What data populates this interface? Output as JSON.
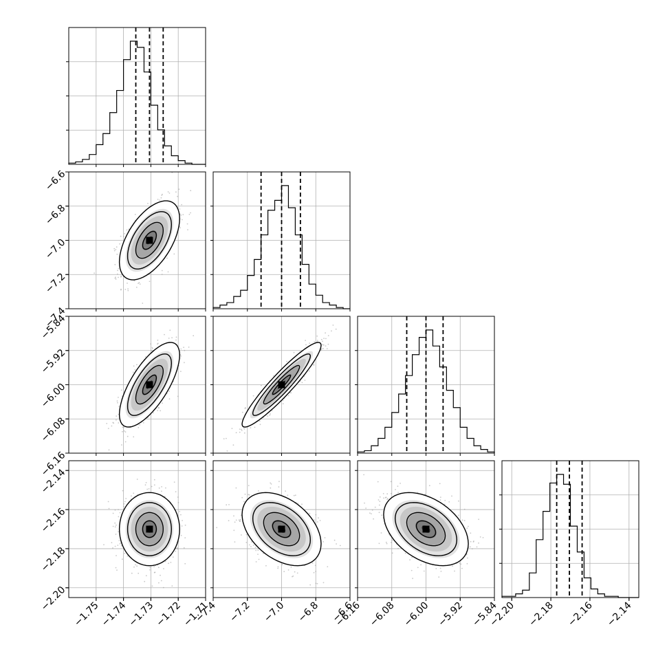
{
  "chart_data": {
    "type": "corner",
    "title": "",
    "parameters": [
      {
        "range": [
          -1.76,
          -1.71
        ],
        "quantiles": [
          -1.7355,
          -1.7305,
          -1.7255
        ],
        "ticks": [
          -1.75,
          -1.74,
          -1.73,
          -1.72,
          -1.71
        ],
        "tick_labels": [
          "−1.75",
          "−1.74",
          "−1.73",
          "−1.72",
          "−1.71"
        ]
      },
      {
        "range": [
          -7.4,
          -6.6
        ],
        "quantiles": [
          -7.12,
          -7.0,
          -6.89
        ],
        "ticks": [
          -7.4,
          -7.2,
          -7.0,
          -6.8,
          -6.6
        ],
        "tick_labels": [
          "−7.4",
          "−7.2",
          "−7.0",
          "−6.8",
          "−6.6"
        ]
      },
      {
        "range": [
          -6.16,
          -5.84
        ],
        "quantiles": [
          -6.045,
          -6.0,
          -5.96
        ],
        "ticks": [
          -6.16,
          -6.08,
          -6.0,
          -5.92,
          -5.84
        ],
        "tick_labels": [
          "−6.16",
          "−6.08",
          "−6.00",
          "−5.92",
          "−5.84"
        ]
      },
      {
        "range": [
          -2.205,
          -2.135
        ],
        "quantiles": [
          -2.177,
          -2.1705,
          -2.164
        ],
        "ticks": [
          -2.2,
          -2.18,
          -2.16,
          -2.14
        ],
        "tick_labels": [
          "−2.20",
          "−2.18",
          "−2.16",
          "−2.14"
        ]
      }
    ],
    "histograms": [
      {
        "param": 0,
        "counts": [
          1,
          2,
          4,
          8,
          16,
          25,
          42,
          60,
          85,
          100,
          95,
          75,
          48,
          28,
          15,
          7,
          3,
          1,
          0,
          0
        ]
      },
      {
        "param": 1,
        "counts": [
          1,
          3,
          5,
          10,
          15,
          27,
          40,
          60,
          80,
          88,
          100,
          82,
          60,
          36,
          20,
          11,
          5,
          3,
          1,
          0
        ]
      },
      {
        "param": 2,
        "counts": [
          1,
          2,
          6,
          12,
          21,
          33,
          48,
          63,
          80,
          94,
          100,
          87,
          70,
          51,
          37,
          21,
          12,
          6,
          3,
          1
        ]
      },
      {
        "param": 3,
        "counts": [
          1,
          1,
          3,
          6,
          20,
          47,
          70,
          93,
          100,
          92,
          58,
          37,
          16,
          7,
          3,
          1,
          1,
          0,
          0,
          0
        ]
      }
    ],
    "joint": [
      {
        "x": 0,
        "y": 1,
        "mean": [
          -1.7305,
          -7.0
        ],
        "sd": [
          0.005,
          0.105
        ],
        "rho": 0.55
      },
      {
        "x": 0,
        "y": 2,
        "mean": [
          -1.7305,
          -6.0
        ],
        "sd": [
          0.005,
          0.045
        ],
        "rho": 0.7
      },
      {
        "x": 1,
        "y": 2,
        "mean": [
          -7.0,
          -6.0
        ],
        "sd": [
          0.105,
          0.045
        ],
        "rho": 0.93
      },
      {
        "x": 0,
        "y": 3,
        "mean": [
          -1.7305,
          -2.17
        ],
        "sd": [
          0.005,
          0.0085
        ],
        "rho": 0.0
      },
      {
        "x": 1,
        "y": 3,
        "mean": [
          -7.0,
          -2.17
        ],
        "sd": [
          0.105,
          0.0085
        ],
        "rho": -0.4
      },
      {
        "x": 2,
        "y": 3,
        "mean": [
          -6.0,
          -2.17
        ],
        "sd": [
          0.045,
          0.0085
        ],
        "rho": -0.4
      }
    ],
    "grid": true
  }
}
